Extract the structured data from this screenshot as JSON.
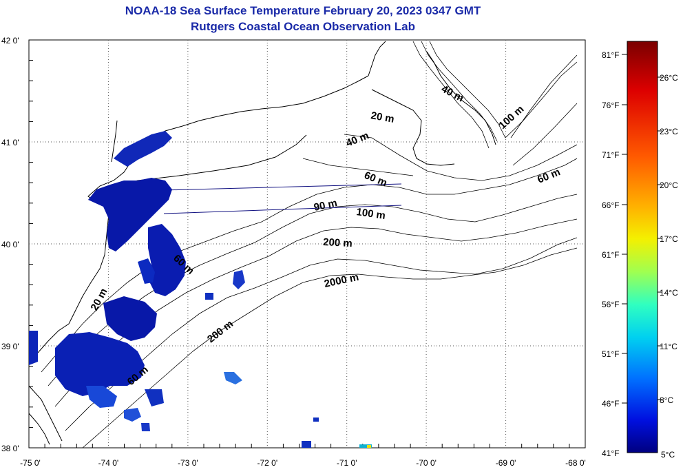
{
  "title": {
    "line1": "NOAA-18 Sea Surface Temperature February 20, 2023 0347 GMT",
    "line2": "Rutgers Coastal Ocean Observation Lab"
  },
  "map": {
    "lon_range": [
      -75,
      -68
    ],
    "lat_range": [
      38,
      42
    ],
    "lon_ticks": [
      "-75 0'",
      "-74 0'",
      "-73 0'",
      "-72 0'",
      "-71 0'",
      "-70 0'",
      "-69 0'",
      "-68 0'"
    ],
    "lat_ticks": [
      "42 0'",
      "41 0'",
      "40 0'",
      "39 0'",
      "38 0'"
    ],
    "grid": "dotted",
    "contour_labels": [
      "40 m",
      "100 m",
      "20 m",
      "40 m",
      "60 m",
      "60 m",
      "90 m",
      "100 m",
      "200 m",
      "60 m",
      "2000 m",
      "20 m",
      "200 m",
      "60 m"
    ]
  },
  "colorbar": {
    "fahrenheit": [
      "81°F",
      "76°F",
      "71°F",
      "66°F",
      "61°F",
      "56°F",
      "51°F",
      "46°F",
      "41°F"
    ],
    "celsius": [
      "26°C",
      "23°C",
      "20°C",
      "17°C",
      "14°C",
      "11°C",
      "8°C",
      "5°C"
    ],
    "colors": [
      "#800000",
      "#e00000",
      "#ff5000",
      "#ffa000",
      "#ffe000",
      "#c0ff30",
      "#60ff90",
      "#00e0e0",
      "#0090ff",
      "#0030ff",
      "#0000c0",
      "#000080"
    ]
  }
}
